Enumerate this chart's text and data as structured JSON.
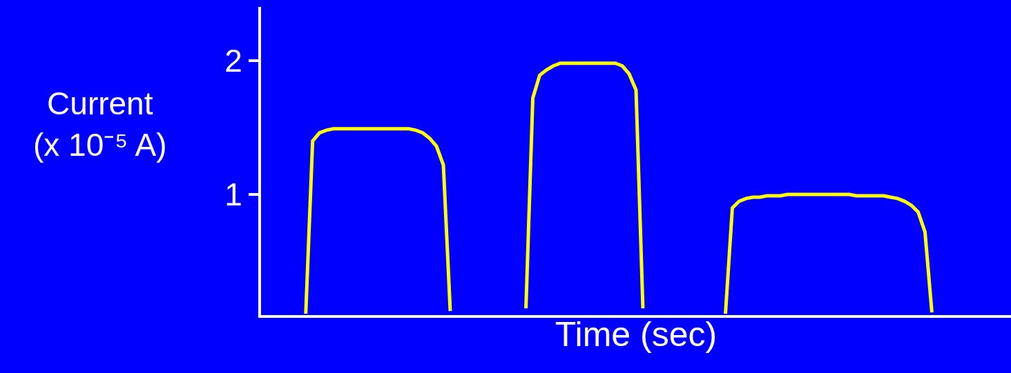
{
  "chart_data": {
    "type": "line",
    "xlabel": "Time (sec)",
    "ylabel": "Current\n(x 10⁻⁵ A)",
    "categories": [
      null,
      null,
      null,
      null,
      null,
      null,
      null,
      null,
      null,
      null,
      null,
      null,
      null,
      null,
      null,
      null,
      null,
      null,
      null,
      null,
      null,
      null,
      null,
      null,
      null,
      null,
      null,
      null,
      null,
      null,
      null,
      null,
      null,
      null,
      null,
      null,
      null,
      null,
      null,
      null,
      null,
      null,
      null,
      null,
      null,
      null,
      null,
      null,
      null,
      null,
      null,
      null,
      null,
      null,
      null,
      null,
      null,
      null,
      null,
      null,
      null,
      null,
      null,
      null,
      null,
      null,
      null,
      null,
      null,
      null,
      null,
      null,
      null,
      null,
      null,
      null,
      null,
      null,
      null,
      null,
      null,
      null,
      null,
      null,
      null,
      null,
      null,
      null,
      null,
      null,
      null,
      null,
      null,
      null,
      null,
      null,
      null,
      null,
      null,
      null,
      null,
      null,
      null,
      null,
      null,
      null,
      null,
      null,
      null
    ],
    "series": [
      {
        "color": "#ffff00",
        "values": [
          null,
          null,
          null,
          null,
          null,
          null,
          0.11,
          1.4,
          1.46,
          1.48,
          1.49,
          1.49,
          1.49,
          1.49,
          1.49,
          1.49,
          1.49,
          1.49,
          1.49,
          1.49,
          1.49,
          1.49,
          1.48,
          1.46,
          1.42,
          1.36,
          1.22,
          0.13,
          null,
          null,
          null,
          null,
          null,
          null,
          null,
          null,
          null,
          null,
          0.15,
          1.72,
          1.89,
          1.93,
          1.96,
          1.98,
          1.98,
          1.98,
          1.98,
          1.98,
          1.98,
          1.98,
          1.98,
          1.98,
          1.96,
          1.9,
          1.78,
          0.15,
          null,
          null,
          null,
          null,
          null,
          null,
          null,
          null,
          null,
          null,
          null,
          0.11,
          0.9,
          0.95,
          0.97,
          0.98,
          0.98,
          0.99,
          0.99,
          0.99,
          1,
          1,
          1,
          1,
          1,
          1,
          1,
          1,
          1,
          1,
          0.99,
          0.99,
          0.99,
          0.99,
          0.99,
          0.98,
          0.97,
          0.95,
          0.92,
          0.87,
          0.72,
          0.12,
          null,
          null,
          null,
          null,
          null,
          null,
          null,
          null,
          null,
          null,
          null
        ]
      }
    ],
    "ylim": [
      0.1,
      2.4
    ],
    "yticks": [
      1,
      2
    ],
    "marker": "none",
    "line_style": "solid",
    "tick_labels": "y"
  }
}
